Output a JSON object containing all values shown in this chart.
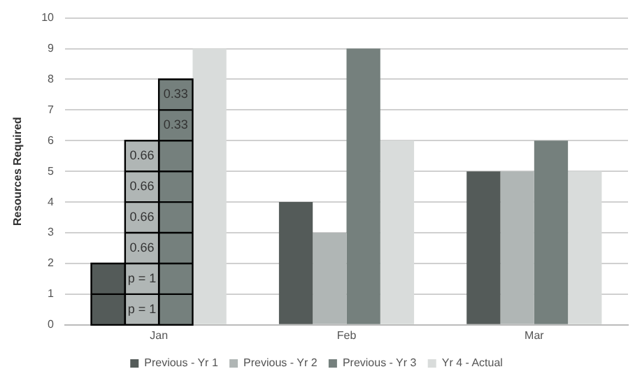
{
  "chart_data": {
    "type": "bar",
    "ylabel": "Resources Required",
    "categories": [
      "Jan",
      "Feb",
      "Mar"
    ],
    "series": [
      {
        "name": "Previous - Yr 1",
        "color": "#545b59",
        "values": [
          2,
          4,
          5
        ]
      },
      {
        "name": "Previous - Yr 2",
        "color": "#b0b6b5",
        "values": [
          6,
          3,
          5
        ]
      },
      {
        "name": "Previous - Yr 3",
        "color": "#75807d",
        "values": [
          8,
          9,
          6
        ]
      },
      {
        "name": "Yr 4 - Actual",
        "color": "#d9dcdb",
        "values": [
          9,
          6,
          5
        ]
      }
    ],
    "ylim": [
      0,
      10
    ],
    "yticks": [
      0,
      1,
      2,
      3,
      4,
      5,
      6,
      7,
      8,
      9,
      10
    ],
    "grid": "y",
    "legend": "bottom",
    "annotations": [
      {
        "text": "p = 1",
        "x": "Jan",
        "y": 0.5
      },
      {
        "text": "p = 1",
        "x": "Jan",
        "y": 1.5
      },
      {
        "text": "0.66",
        "x": "Jan",
        "y": 2.5
      },
      {
        "text": "0.66",
        "x": "Jan",
        "y": 3.5
      },
      {
        "text": "0.66",
        "x": "Jan",
        "y": 4.5
      },
      {
        "text": "0.66",
        "x": "Jan",
        "y": 5.5
      },
      {
        "text": "0.33",
        "x": "Jan",
        "y": 6.5
      },
      {
        "text": "0.33",
        "x": "Jan",
        "y": 7.5
      }
    ]
  }
}
